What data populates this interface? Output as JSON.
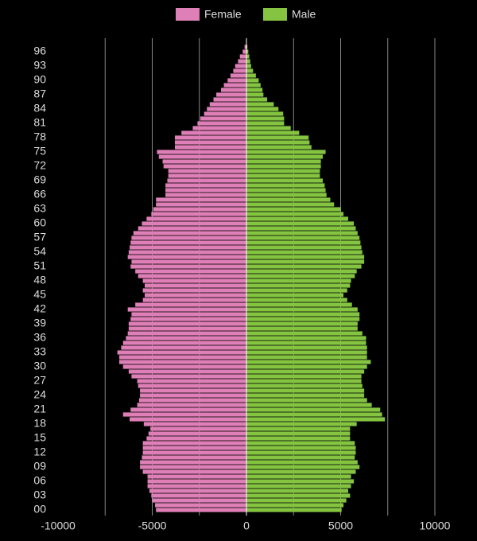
{
  "chart_data": {
    "type": "pyramid",
    "categories": [
      "00",
      null,
      null,
      "03",
      null,
      null,
      "06",
      null,
      null,
      "09",
      null,
      null,
      "12",
      null,
      null,
      "15",
      null,
      null,
      "18",
      null,
      null,
      "21",
      null,
      null,
      "24",
      null,
      null,
      "27",
      null,
      null,
      "30",
      null,
      null,
      "33",
      null,
      null,
      "36",
      null,
      null,
      "39",
      null,
      null,
      "42",
      null,
      null,
      "45",
      null,
      null,
      "48",
      null,
      null,
      "51",
      null,
      null,
      "54",
      null,
      null,
      "57",
      null,
      null,
      "60",
      null,
      null,
      "63",
      null,
      null,
      "66",
      null,
      null,
      "69",
      null,
      null,
      "72",
      null,
      null,
      "75",
      null,
      null,
      "78",
      null,
      null,
      "81",
      null,
      null,
      "84",
      null,
      null,
      "87",
      null,
      null,
      "90",
      null,
      null,
      "93",
      null,
      null,
      "96",
      null
    ],
    "series": [
      {
        "name": "Female",
        "color": "#df7fb7",
        "values": [
          -4800,
          -4850,
          -5000,
          -5050,
          -5150,
          -5250,
          -5250,
          -5250,
          -5500,
          -5650,
          -5650,
          -5550,
          -5500,
          -5500,
          -5500,
          -5300,
          -5200,
          -5100,
          -5450,
          -6200,
          -6550,
          -6150,
          -5800,
          -5700,
          -5650,
          -5650,
          -5750,
          -5800,
          -6100,
          -6250,
          -6550,
          -6750,
          -6750,
          -6850,
          -6650,
          -6550,
          -6400,
          -6300,
          -6250,
          -6250,
          -6150,
          -6100,
          -6300,
          -5900,
          -5500,
          -5400,
          -5500,
          -5400,
          -5500,
          -5750,
          -5900,
          -6150,
          -6100,
          -6300,
          -6250,
          -6200,
          -6150,
          -6100,
          -6000,
          -5750,
          -5550,
          -5300,
          -5050,
          -4950,
          -4800,
          -4800,
          -4300,
          -4300,
          -4300,
          -4200,
          -4150,
          -4150,
          -4400,
          -4450,
          -4650,
          -4750,
          -3800,
          -3800,
          -3800,
          -3450,
          -2850,
          -2600,
          -2450,
          -2250,
          -2100,
          -1950,
          -1750,
          -1600,
          -1350,
          -1200,
          -1000,
          -850,
          -700,
          -600,
          -450,
          -350,
          -200,
          -100
        ]
      },
      {
        "name": "Male",
        "color": "#84c441",
        "values": [
          5050,
          5150,
          5300,
          5500,
          5400,
          5550,
          5700,
          5550,
          5800,
          6000,
          5900,
          5750,
          5800,
          5800,
          5750,
          5500,
          5500,
          5500,
          5850,
          7350,
          7200,
          7100,
          6650,
          6400,
          6250,
          6250,
          6150,
          6100,
          6100,
          6250,
          6400,
          6600,
          6400,
          6400,
          6400,
          6350,
          6350,
          6150,
          5900,
          5900,
          6000,
          6000,
          5900,
          5600,
          5350,
          5150,
          5350,
          5500,
          5550,
          5750,
          5850,
          6100,
          6250,
          6250,
          6150,
          6100,
          6050,
          6000,
          5900,
          5800,
          5700,
          5400,
          5150,
          5000,
          4650,
          4450,
          4250,
          4200,
          4150,
          4050,
          3900,
          3900,
          3950,
          3950,
          4050,
          4200,
          3450,
          3350,
          3300,
          2800,
          2350,
          2000,
          2000,
          1950,
          1700,
          1450,
          1100,
          900,
          850,
          750,
          650,
          500,
          350,
          250,
          200,
          150,
          100,
          50
        ]
      }
    ],
    "xlim": [
      -10000,
      10000
    ],
    "xticks": [
      -10000,
      -5000,
      0,
      5000,
      10000
    ],
    "xgrid": [
      -7500,
      -5000,
      -2500,
      2500,
      5000,
      7500,
      10000
    ],
    "grid": true,
    "legend": "top"
  }
}
